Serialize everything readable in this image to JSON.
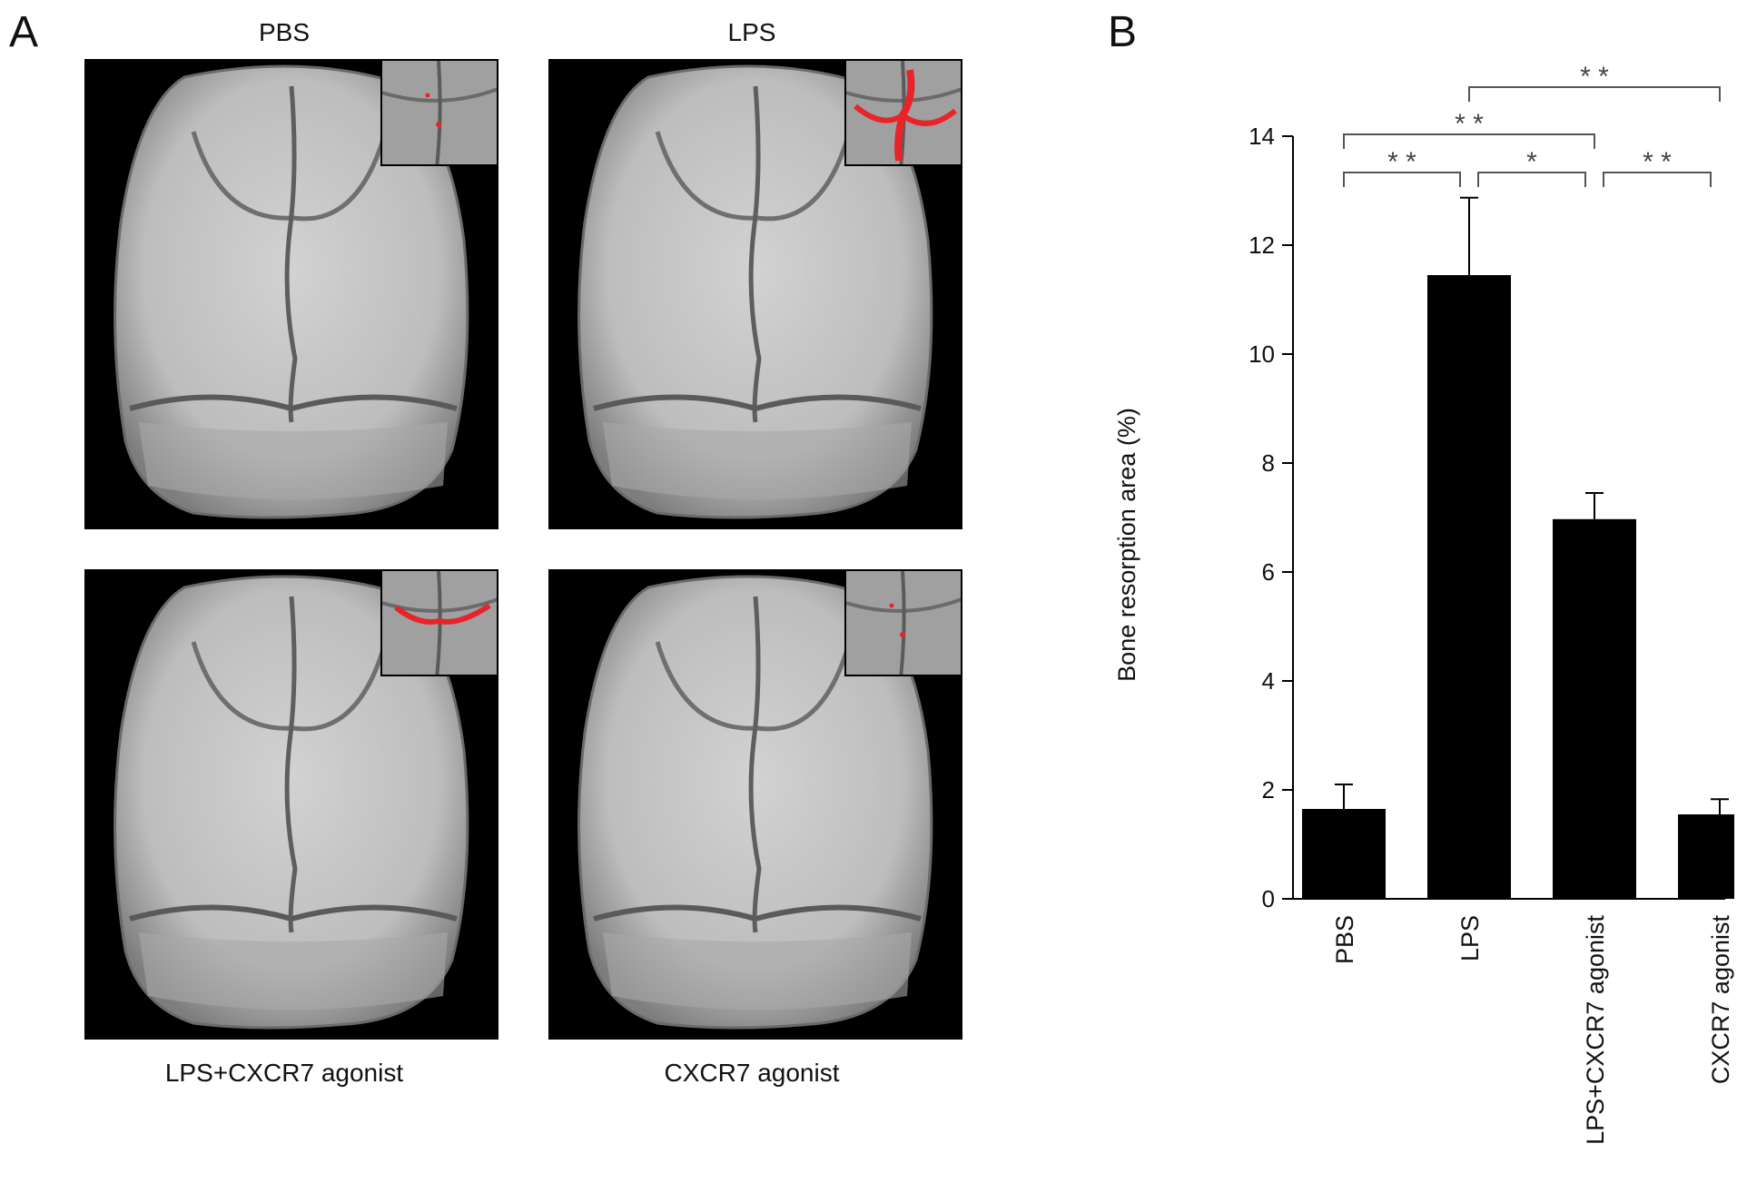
{
  "panel_a": {
    "letter": "A",
    "images": [
      {
        "caption": "PBS",
        "position": "top",
        "resorption": "minimal"
      },
      {
        "caption": "LPS",
        "position": "top",
        "resorption": "extensive"
      },
      {
        "caption": "LPS+CXCR7 agonist",
        "position": "bottom",
        "resorption": "moderate"
      },
      {
        "caption": "CXCR7 agonist",
        "position": "bottom",
        "resorption": "minimal"
      }
    ]
  },
  "panel_b": {
    "letter": "B"
  },
  "colors": {
    "bar": "#000000",
    "bone": "#bdbdbd",
    "resorption": "#e8242a",
    "bracket": "#555555"
  },
  "chart_data": {
    "type": "bar",
    "categories": [
      "PBS",
      "LPS",
      "LPS+CXCR7 agonist",
      "CXCR7 agonist"
    ],
    "values": [
      1.65,
      11.45,
      6.97,
      1.55
    ],
    "errors": [
      0.45,
      1.42,
      0.48,
      0.28
    ],
    "ylabel": "Bone resorption area (%)",
    "ylim": [
      0,
      14
    ],
    "yticks": [
      0,
      2,
      4,
      6,
      8,
      10,
      12,
      14
    ],
    "significance": [
      {
        "from": 0,
        "to": 1,
        "label": "* *"
      },
      {
        "from": 1,
        "to": 2,
        "label": "*"
      },
      {
        "from": 2,
        "to": 3,
        "label": "* *"
      },
      {
        "from": 0,
        "to": 2,
        "label": "* *"
      },
      {
        "from": 1,
        "to": 3,
        "label": "* *"
      }
    ]
  }
}
